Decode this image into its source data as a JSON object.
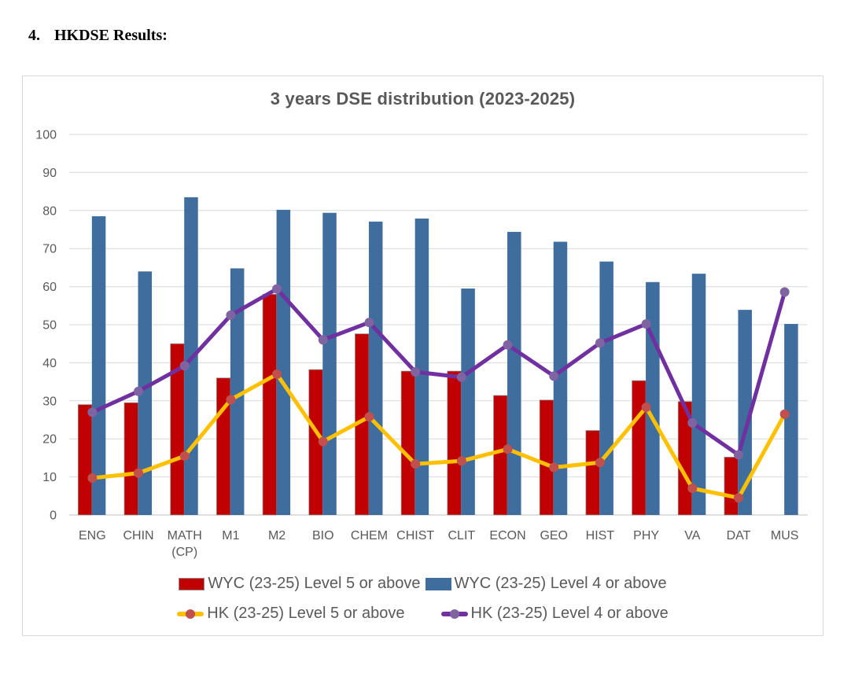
{
  "heading": {
    "number": "4.",
    "title": "HKDSE Results:"
  },
  "chart_data": {
    "type": "combo",
    "title": "3 years DSE distribution (2023-2025)",
    "categories": [
      "ENG",
      "CHIN",
      "MATH\n(CP)",
      "M1",
      "M2",
      "BIO",
      "CHEM",
      "CHIST",
      "CLIT",
      "ECON",
      "GEO",
      "HIST",
      "PHY",
      "VA",
      "DAT",
      "MUS"
    ],
    "ylim": [
      0,
      100
    ],
    "ytick_interval": 10,
    "grid": true,
    "legend_position": "bottom",
    "colors": {
      "grid": "#D9D9D9",
      "axis_line": "#BFBFBF",
      "label": "#595959",
      "title": "#595959",
      "panel_border": "#D9D9D9",
      "bar_outline": "#8C8C8C"
    },
    "series": [
      {
        "name": "WYC (23-25) Level 5 or above",
        "type": "bar",
        "color": "#C00000",
        "values": [
          29,
          29.5,
          45,
          36,
          58,
          38.2,
          47.6,
          37.8,
          37.8,
          31.4,
          30.2,
          22.2,
          35.3,
          29.8,
          15.2,
          null
        ]
      },
      {
        "name": "WYC (23-25) Level 4 or above",
        "type": "bar",
        "color": "#3E6D9E",
        "values": [
          78.5,
          64,
          83.5,
          64.8,
          80.2,
          79.4,
          77.1,
          77.9,
          59.5,
          74.4,
          71.8,
          66.6,
          61.2,
          63.4,
          53.9,
          50.2
        ]
      },
      {
        "name": "HK (23-25) Level 5 or above",
        "type": "line",
        "color": "#FFC000",
        "marker_color": "#C0504D",
        "values": [
          9.7,
          11,
          15.5,
          30.3,
          37,
          19.3,
          25.8,
          13.4,
          14.2,
          17.3,
          12.5,
          13.8,
          28.3,
          7,
          4.5,
          26.5
        ]
      },
      {
        "name": "HK (23-25) Level 4 or above",
        "type": "line",
        "color": "#7030A0",
        "marker_color": "#8064A2",
        "values": [
          27,
          32.5,
          39.2,
          52.5,
          59.4,
          46,
          50.6,
          37.6,
          36.2,
          44.7,
          36.5,
          45.2,
          50.2,
          24.2,
          15.8,
          58.6
        ]
      }
    ]
  }
}
